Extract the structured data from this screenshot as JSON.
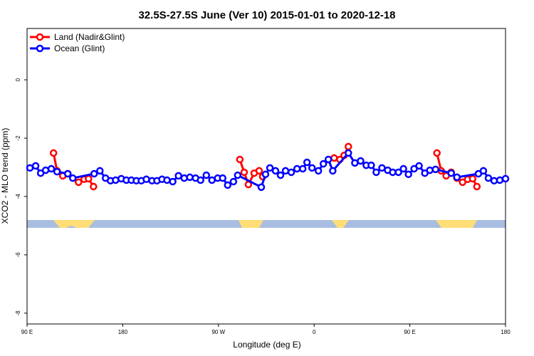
{
  "chart_data": {
    "type": "line",
    "title": "32.5S-27.5S June (Ver 10)   2015-01-01 to 2020-12-18",
    "x_label": "Longitude (deg E)",
    "y_label": "XCO2 - MLO trend (ppm)",
    "xlim": [
      90,
      540
    ],
    "xticks": [
      {
        "value": 90,
        "label": "90 E"
      },
      {
        "value": 180,
        "label": "180"
      },
      {
        "value": 270,
        "label": "90 W"
      },
      {
        "value": 360,
        "label": "0"
      },
      {
        "value": 450,
        "label": "90 E"
      },
      {
        "value": 540,
        "label": "180"
      }
    ],
    "ylim": [
      -8.37,
      1.76
    ],
    "yticks": [
      -8,
      -6,
      -4,
      -2,
      0
    ],
    "legend": "top-left",
    "series": [
      {
        "name": "Land (Nadir&Glint)",
        "color": "#ff0000",
        "x": [
          114.9,
          118.2,
          123.6,
          128.3,
          138.4,
          143.7,
          147.8,
          152.5,
          null,
          290.1,
          294.2,
          298.2,
          303.6,
          308.3,
          311.6,
          null,
          378.8,
          384.2,
          388.2,
          392.2,
          null,
          475.5,
          479.5,
          484.2,
          488.9,
          494.3,
          499.6,
          504.4,
          509.1,
          513.1
        ],
        "values": [
          -2.51,
          -3.12,
          -3.29,
          -3.22,
          -3.51,
          -3.41,
          -3.39,
          -3.66,
          null,
          -2.73,
          -3.17,
          -3.59,
          -3.2,
          -3.12,
          -3.32,
          null,
          -2.68,
          -2.73,
          -2.59,
          -2.29,
          null,
          -2.51,
          -3.12,
          -3.29,
          -3.17,
          -3.37,
          -3.51,
          -3.41,
          -3.39,
          -3.66
        ]
      },
      {
        "name": "Ocean (Glint)",
        "color": "#0000ff",
        "x": [
          92.7,
          98.1,
          102.8,
          107.5,
          112.8,
          118.2,
          128.3,
          133.0,
          153.1,
          158.5,
          163.8,
          168.5,
          173.3,
          178.6,
          183.4,
          188.1,
          192.8,
          197.5,
          202.2,
          207.5,
          212.2,
          216.9,
          221.6,
          227.0,
          232.4,
          237.8,
          243.1,
          248.5,
          253.2,
          258.6,
          263.9,
          269.3,
          274.0,
          278.7,
          284.1,
          288.1,
          310.3,
          314.3,
          318.4,
          323.7,
          328.4,
          333.1,
          338.5,
          343.9,
          349.3,
          353.3,
          358.0,
          364.0,
          368.7,
          373.4,
          377.5,
          392.2,
          398.3,
          403.7,
          409.0,
          413.7,
          418.4,
          423.8,
          429.2,
          433.9,
          439.3,
          444.0,
          448.7,
          454.0,
          458.7,
          464.1,
          468.8,
          474.2,
          488.9,
          494.3,
          514.5,
          519.2,
          523.9,
          529.3,
          534.6,
          540.0
        ],
        "values": [
          -3.02,
          -2.95,
          -3.2,
          -3.1,
          -3.05,
          -3.15,
          -3.22,
          -3.37,
          -3.22,
          -3.12,
          -3.37,
          -3.46,
          -3.44,
          -3.39,
          -3.44,
          -3.44,
          -3.46,
          -3.46,
          -3.41,
          -3.46,
          -3.46,
          -3.41,
          -3.44,
          -3.49,
          -3.29,
          -3.37,
          -3.34,
          -3.37,
          -3.44,
          -3.27,
          -3.44,
          -3.37,
          -3.37,
          -3.61,
          -3.49,
          -3.27,
          -3.68,
          -3.24,
          -3.02,
          -3.12,
          -3.27,
          -3.12,
          -3.17,
          -3.05,
          -3.05,
          -2.83,
          -3.02,
          -3.12,
          -2.88,
          -2.73,
          -3.12,
          -2.51,
          -2.85,
          -2.78,
          -2.93,
          -2.93,
          -3.17,
          -3.02,
          -3.1,
          -3.17,
          -3.17,
          -3.05,
          -3.24,
          -3.05,
          -2.95,
          -3.2,
          -3.1,
          -3.07,
          -3.2,
          -3.34,
          -3.22,
          -3.12,
          -3.37,
          -3.46,
          -3.44,
          -3.39
        ]
      }
    ]
  }
}
